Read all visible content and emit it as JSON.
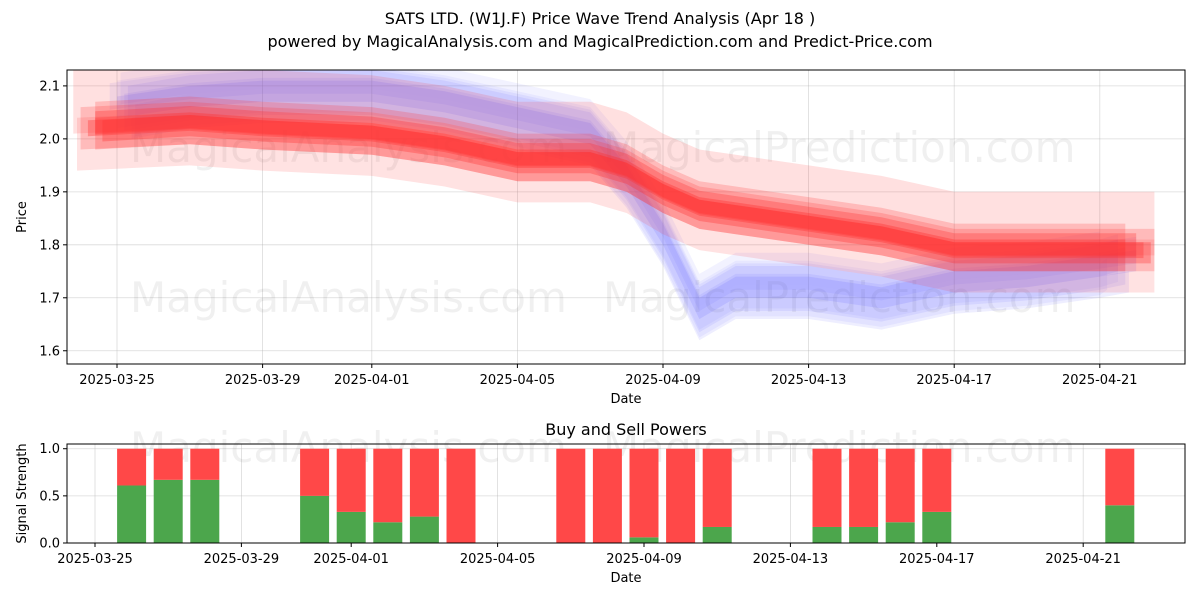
{
  "title": "SATS LTD. (W1J.F) Price Wave Trend Analysis (Apr 18 )",
  "subtitle": "powered by MagicalAnalysis.com and MagicalPrediction.com and Predict-Price.com",
  "watermarks": [
    "MagicalAnalysis.com",
    "MagicalPrediction.com"
  ],
  "colors": {
    "buy": "#4ca64c",
    "sell": "#ff4848",
    "blue_band": "#5a5aff",
    "red_band": "#ff3030"
  },
  "chart_data": [
    {
      "type": "area",
      "xlabel": "Date",
      "ylabel": "Price",
      "ylim": [
        1.575,
        2.13
      ],
      "x_ticks": [
        "2025-03-25",
        "2025-03-29",
        "2025-04-01",
        "2025-04-05",
        "2025-04-09",
        "2025-04-13",
        "2025-04-17",
        "2025-04-21"
      ],
      "y_ticks": [
        1.6,
        1.7,
        1.8,
        1.9,
        2.0,
        2.1
      ],
      "grid": true,
      "x": [
        "2025-03-25",
        "2025-03-27",
        "2025-03-29",
        "2025-04-01",
        "2025-04-03",
        "2025-04-05",
        "2025-04-07",
        "2025-04-08",
        "2025-04-09",
        "2025-04-10",
        "2025-04-11",
        "2025-04-13",
        "2025-04-15",
        "2025-04-17",
        "2025-04-19",
        "2025-04-21",
        "2025-04-22"
      ],
      "series": [
        {
          "color": "blue",
          "values": [
            2.06,
            2.08,
            2.09,
            2.09,
            2.07,
            2.04,
            2.01,
            1.93,
            1.82,
            1.68,
            1.72,
            1.72,
            1.7,
            1.73,
            1.74,
            1.76,
            1.77
          ]
        },
        {
          "color": "red",
          "values": [
            2.02,
            2.03,
            2.02,
            2.01,
            1.99,
            1.96,
            1.96,
            1.94,
            1.9,
            1.87,
            1.86,
            1.84,
            1.82,
            1.79,
            1.79,
            1.79,
            1.79
          ]
        }
      ]
    },
    {
      "type": "bar",
      "title": "Buy and Sell Powers",
      "xlabel": "Date",
      "ylabel": "Signal Strength",
      "ylim": [
        0,
        1.05
      ],
      "x_ticks": [
        "2025-03-25",
        "2025-03-29",
        "2025-04-01",
        "2025-04-05",
        "2025-04-09",
        "2025-04-13",
        "2025-04-17",
        "2025-04-21"
      ],
      "y_ticks": [
        0.0,
        0.5,
        1.0
      ],
      "categories": [
        "2025-03-26",
        "2025-03-27",
        "2025-03-28",
        "2025-03-31",
        "2025-04-01",
        "2025-04-02",
        "2025-04-03",
        "2025-04-04",
        "2025-04-07",
        "2025-04-08",
        "2025-04-09",
        "2025-04-10",
        "2025-04-11",
        "2025-04-14",
        "2025-04-15",
        "2025-04-16",
        "2025-04-17",
        "2025-04-22"
      ],
      "series": [
        {
          "name": "Buy",
          "values": [
            0.61,
            0.67,
            0.67,
            0.5,
            0.33,
            0.22,
            0.28,
            0.0,
            0.0,
            0.0,
            0.06,
            0.0,
            0.17,
            0.17,
            0.17,
            0.22,
            0.33,
            0.4
          ]
        },
        {
          "name": "Sell",
          "values": [
            0.39,
            0.33,
            0.33,
            0.5,
            0.67,
            0.78,
            0.72,
            1.0,
            1.0,
            1.0,
            0.94,
            1.0,
            0.83,
            0.83,
            0.83,
            0.78,
            0.67,
            0.6
          ]
        }
      ]
    }
  ]
}
